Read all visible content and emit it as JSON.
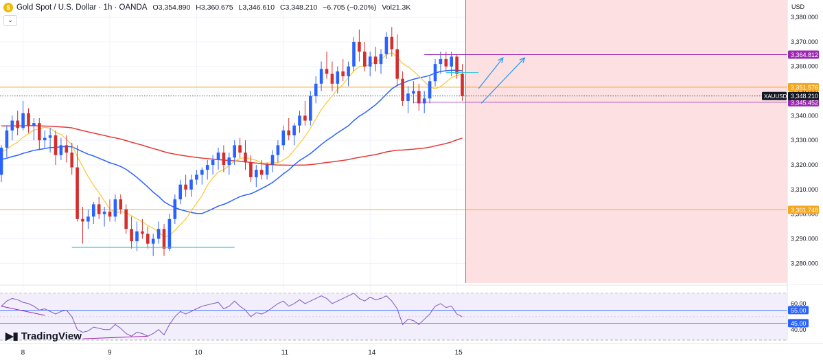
{
  "header": {
    "symbol_title": "Gold Spot / U.S. Dollar · 1h · OANDA",
    "open": "O3,354.890",
    "high": "H3,360.675",
    "low": "L3,346.610",
    "close": "C3,348.210",
    "change": "−6.705 (−0.20%)",
    "volume": "Vol21.3K",
    "currency": "USD",
    "collapse_icon": "chevron-down-icon"
  },
  "branding": {
    "name": "TradingView",
    "icon": "tradingview-logo-icon"
  },
  "colors": {
    "up": "#2962ff",
    "down": "#d32f2f",
    "ma_fast": "#f9c733",
    "ma_mid": "#2962ff",
    "ma_slow": "#e53935",
    "level": "#f5a623",
    "purple": "#9c27b0",
    "cyan": "#26c6da",
    "arrow": "#2196f3",
    "zone": "#fde0e2",
    "rsi": "#7e57c2"
  },
  "chart_data": [
    {
      "type": "candlestick",
      "timeframe": "1h",
      "symbol": "XAUUSD",
      "ylim": [
        3272,
        3387
      ],
      "y_ticks": [
        "3,280.000",
        "3,290.000",
        "3,300.000",
        "3,310.000",
        "3,320.000",
        "3,330.000",
        "3,340.000",
        "3,350.000",
        "3,360.000",
        "3,370.000",
        "3,380.000"
      ],
      "x_ticks": [
        {
          "label": "8",
          "i": 4
        },
        {
          "label": "9",
          "i": 20
        },
        {
          "label": "10",
          "i": 36
        },
        {
          "label": "11",
          "i": 52
        },
        {
          "label": "14",
          "i": 68
        },
        {
          "label": "15",
          "i": 84
        }
      ],
      "bars_ohlc": [
        [
          3316,
          3328,
          3313,
          3327
        ],
        [
          3327,
          3336,
          3323,
          3334
        ],
        [
          3334,
          3340,
          3330,
          3338
        ],
        [
          3338,
          3342,
          3332,
          3335
        ],
        [
          3335,
          3346,
          3334,
          3341
        ],
        [
          3341,
          3343,
          3333,
          3336
        ],
        [
          3336,
          3339,
          3330,
          3337
        ],
        [
          3337,
          3339,
          3326,
          3330
        ],
        [
          3330,
          3334,
          3327,
          3331
        ],
        [
          3331,
          3335,
          3325,
          3332
        ],
        [
          3332,
          3334,
          3320,
          3324
        ],
        [
          3324,
          3331,
          3322,
          3328
        ],
        [
          3328,
          3332,
          3321,
          3325
        ],
        [
          3325,
          3329,
          3316,
          3319
        ],
        [
          3319,
          3328,
          3297,
          3298
        ],
        [
          3298,
          3303,
          3288,
          3297
        ],
        [
          3297,
          3302,
          3294,
          3299
        ],
        [
          3299,
          3305,
          3296,
          3304
        ],
        [
          3304,
          3307,
          3298,
          3300
        ],
        [
          3300,
          3303,
          3295,
          3301
        ],
        [
          3301,
          3306,
          3297,
          3299
        ],
        [
          3299,
          3308,
          3297,
          3306
        ],
        [
          3306,
          3308,
          3300,
          3302
        ],
        [
          3302,
          3304,
          3292,
          3294
        ],
        [
          3294,
          3299,
          3286,
          3289
        ],
        [
          3289,
          3297,
          3285,
          3293
        ],
        [
          3293,
          3298,
          3290,
          3292
        ],
        [
          3292,
          3295,
          3286,
          3288
        ],
        [
          3288,
          3292,
          3283,
          3290
        ],
        [
          3290,
          3297,
          3288,
          3294
        ],
        [
          3294,
          3296,
          3283,
          3286
        ],
        [
          3286,
          3300,
          3285,
          3298
        ],
        [
          3298,
          3308,
          3296,
          3306
        ],
        [
          3306,
          3314,
          3304,
          3312
        ],
        [
          3312,
          3316,
          3307,
          3310
        ],
        [
          3310,
          3316,
          3307,
          3314
        ],
        [
          3314,
          3318,
          3312,
          3316
        ],
        [
          3316,
          3319,
          3312,
          3318
        ],
        [
          3318,
          3322,
          3314,
          3320
        ],
        [
          3320,
          3324,
          3316,
          3322
        ],
        [
          3322,
          3327,
          3318,
          3325
        ],
        [
          3325,
          3328,
          3317,
          3320
        ],
        [
          3320,
          3325,
          3316,
          3323
        ],
        [
          3323,
          3330,
          3320,
          3328
        ],
        [
          3328,
          3331,
          3323,
          3325
        ],
        [
          3325,
          3330,
          3318,
          3321
        ],
        [
          3321,
          3324,
          3313,
          3315
        ],
        [
          3315,
          3320,
          3311,
          3318
        ],
        [
          3318,
          3322,
          3314,
          3316
        ],
        [
          3316,
          3321,
          3314,
          3320
        ],
        [
          3320,
          3326,
          3317,
          3324
        ],
        [
          3324,
          3330,
          3321,
          3328
        ],
        [
          3328,
          3336,
          3326,
          3334
        ],
        [
          3334,
          3339,
          3330,
          3332
        ],
        [
          3332,
          3337,
          3328,
          3336
        ],
        [
          3336,
          3342,
          3333,
          3340
        ],
        [
          3340,
          3346,
          3336,
          3338
        ],
        [
          3338,
          3350,
          3336,
          3348
        ],
        [
          3348,
          3356,
          3345,
          3353
        ],
        [
          3353,
          3362,
          3350,
          3359
        ],
        [
          3359,
          3366,
          3355,
          3357
        ],
        [
          3357,
          3362,
          3350,
          3353
        ],
        [
          3353,
          3360,
          3349,
          3358
        ],
        [
          3358,
          3363,
          3354,
          3356
        ],
        [
          3356,
          3362,
          3352,
          3360
        ],
        [
          3360,
          3372,
          3358,
          3370
        ],
        [
          3370,
          3375,
          3362,
          3366
        ],
        [
          3366,
          3370,
          3358,
          3360
        ],
        [
          3360,
          3366,
          3356,
          3364
        ],
        [
          3364,
          3368,
          3358,
          3361
        ],
        [
          3361,
          3367,
          3357,
          3365
        ],
        [
          3365,
          3374,
          3363,
          3372
        ],
        [
          3372,
          3376,
          3364,
          3367
        ],
        [
          3367,
          3373,
          3352,
          3355
        ],
        [
          3355,
          3358,
          3344,
          3346
        ],
        [
          3346,
          3352,
          3341,
          3349
        ],
        [
          3349,
          3354,
          3345,
          3350
        ],
        [
          3350,
          3353,
          3342,
          3345
        ],
        [
          3345,
          3350,
          3341,
          3347
        ],
        [
          3347,
          3356,
          3345,
          3354
        ],
        [
          3354,
          3363,
          3352,
          3361
        ],
        [
          3361,
          3366,
          3357,
          3363
        ],
        [
          3363,
          3366,
          3358,
          3360
        ],
        [
          3360,
          3366,
          3356,
          3364
        ],
        [
          3364,
          3365,
          3355,
          3357
        ],
        [
          3357,
          3361,
          3346,
          3348
        ]
      ],
      "last_price": "3,348.210",
      "last_price_symbol": "XAUUSD",
      "price_labels": [
        {
          "value": 3364.812,
          "label": "3,364.812",
          "color": "#9c27b0"
        },
        {
          "value": 3351.576,
          "label": "3,351.576",
          "color": "#f5a623"
        },
        {
          "value": 3345.452,
          "label": "3,345.452",
          "color": "#9c27b0"
        },
        {
          "value": 3301.748,
          "label": "3,301.748",
          "color": "#f5a623"
        }
      ],
      "horizontal_levels": [
        {
          "value": 3351.576,
          "color": "#f5a623"
        },
        {
          "value": 3301.748,
          "color": "#f5a623"
        }
      ]
    },
    {
      "type": "line",
      "name": "RSI",
      "ylim": [
        32,
        70
      ],
      "bands": [
        "55.00",
        "45.00"
      ],
      "band_values": [
        55,
        45
      ],
      "tick_labels": [
        {
          "value": 60,
          "label": "60.00"
        },
        {
          "value": 40,
          "label": "40.00"
        }
      ],
      "values": [
        58,
        62,
        64,
        63,
        61,
        60,
        58,
        55,
        56,
        54,
        52,
        54,
        55,
        50,
        40,
        38,
        39,
        42,
        41,
        40,
        40,
        44,
        41,
        37,
        35,
        38,
        37,
        35,
        37,
        40,
        36,
        44,
        50,
        54,
        52,
        54,
        56,
        58,
        59,
        60,
        61,
        56,
        58,
        62,
        58,
        55,
        50,
        53,
        52,
        54,
        57,
        60,
        62,
        58,
        60,
        63,
        60,
        62,
        64,
        66,
        64,
        60,
        62,
        64,
        66,
        68,
        64,
        62,
        65,
        63,
        64,
        66,
        62,
        56,
        44,
        48,
        47,
        44,
        48,
        52,
        58,
        60,
        57,
        58,
        52,
        50
      ]
    }
  ]
}
